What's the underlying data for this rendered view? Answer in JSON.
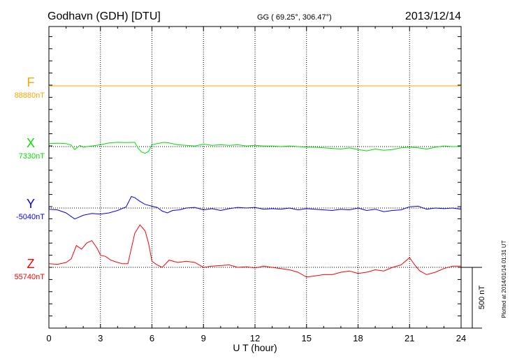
{
  "header": {
    "station": "Godhavn (GDH)  [DTU]",
    "coords": "GG ( 69.25°, 306.47°)",
    "date": "2013/12/14"
  },
  "footer_note": "Plotted at 2014/01/14 01:31  UT",
  "scale_label": "500 nT",
  "chart_data": {
    "type": "line",
    "xlabel": "U T (hour)",
    "ylabel": "",
    "xlim": [
      0,
      24
    ],
    "xticks": [
      "0",
      "3",
      "6",
      "9",
      "12",
      "15",
      "18",
      "21",
      "24"
    ],
    "grid": true,
    "scale_bar_nT": 500,
    "series": [
      {
        "name": "F",
        "baseline_label": "88880nT",
        "color": "#ffa500",
        "x": [
          0,
          24
        ],
        "y": [
          0,
          0
        ]
      },
      {
        "name": "X",
        "baseline_label": "7330nT",
        "color": "#00e000",
        "x": [
          0,
          0.5,
          1.0,
          1.3,
          1.5,
          1.8,
          2.0,
          2.5,
          3.0,
          3.5,
          4.0,
          4.5,
          5.0,
          5.2,
          5.4,
          5.6,
          5.8,
          6.0,
          6.3,
          6.7,
          7.0,
          7.5,
          8.0,
          8.5,
          9.0,
          9.5,
          10.0,
          10.5,
          11.0,
          11.5,
          12.0,
          12.5,
          13.0,
          13.5,
          14.0,
          14.5,
          15.0,
          15.5,
          16.0,
          16.5,
          17.0,
          17.5,
          18.0,
          18.5,
          19.0,
          19.5,
          20.0,
          20.5,
          21.0,
          21.5,
          22.0,
          22.5,
          23.0,
          23.5,
          24.0
        ],
        "y": [
          25,
          28,
          25,
          12,
          -25,
          10,
          -5,
          5,
          15,
          30,
          35,
          33,
          35,
          -15,
          -45,
          -55,
          -40,
          15,
          25,
          35,
          30,
          15,
          10,
          5,
          20,
          10,
          15,
          10,
          15,
          5,
          10,
          5,
          5,
          0,
          5,
          0,
          -5,
          -5,
          -10,
          -15,
          -20,
          -10,
          -25,
          -35,
          -20,
          -30,
          -25,
          -10,
          -5,
          -10,
          -20,
          -5,
          5,
          0,
          0
        ]
      },
      {
        "name": "Y",
        "baseline_label": "-5040nT",
        "color": "#0000ff",
        "x": [
          0,
          0.5,
          1.0,
          1.5,
          2.0,
          2.5,
          3.0,
          3.5,
          4.0,
          4.5,
          4.8,
          5.0,
          5.3,
          5.6,
          6.0,
          6.3,
          6.6,
          6.9,
          7.2,
          7.6,
          8.0,
          8.5,
          9.0,
          9.5,
          10.0,
          10.5,
          11.0,
          11.5,
          12.0,
          12.5,
          13.0,
          13.5,
          14.0,
          14.5,
          15.0,
          15.5,
          16.0,
          16.5,
          17.0,
          17.5,
          18.0,
          18.5,
          19.0,
          19.5,
          20.0,
          20.5,
          21.0,
          21.5,
          22.0,
          22.5,
          23.0,
          23.5,
          24.0
        ],
        "y": [
          -10,
          -15,
          -40,
          -90,
          -60,
          -45,
          -50,
          -40,
          -20,
          10,
          95,
          85,
          55,
          30,
          15,
          5,
          -25,
          -40,
          -20,
          -15,
          0,
          5,
          -15,
          -5,
          -20,
          -5,
          5,
          0,
          5,
          -10,
          -5,
          -10,
          0,
          -15,
          -5,
          -10,
          -15,
          -20,
          -10,
          -15,
          0,
          -20,
          -10,
          -30,
          -20,
          -15,
          10,
          15,
          -10,
          0,
          -5,
          0,
          -10
        ]
      },
      {
        "name": "Z",
        "baseline_label": "55740nT",
        "color": "#ff0000",
        "x": [
          0,
          0.5,
          1.0,
          1.3,
          1.6,
          1.9,
          2.2,
          2.5,
          2.8,
          3.0,
          3.3,
          3.6,
          4.0,
          4.3,
          4.6,
          5.0,
          5.3,
          5.6,
          5.8,
          6.0,
          6.3,
          6.6,
          7.0,
          7.5,
          8.0,
          8.5,
          9.0,
          9.5,
          10.0,
          10.5,
          11.0,
          11.5,
          12.0,
          12.5,
          13.0,
          13.5,
          14.0,
          14.5,
          15.0,
          15.5,
          16.0,
          16.5,
          17.0,
          17.5,
          18.0,
          18.5,
          19.0,
          19.5,
          20.0,
          20.5,
          21.0,
          21.3,
          21.6,
          22.0,
          22.5,
          23.0,
          23.5,
          24.0
        ],
        "y": [
          30,
          25,
          40,
          70,
          180,
          150,
          200,
          220,
          160,
          100,
          90,
          60,
          40,
          30,
          30,
          280,
          350,
          300,
          200,
          50,
          20,
          0,
          60,
          40,
          50,
          40,
          0,
          10,
          15,
          20,
          0,
          5,
          -5,
          10,
          0,
          -10,
          -20,
          -40,
          -80,
          -70,
          -60,
          -60,
          -40,
          -30,
          -50,
          -40,
          -20,
          -30,
          0,
          20,
          80,
          20,
          -30,
          -60,
          -40,
          -10,
          10,
          10
        ]
      }
    ]
  }
}
